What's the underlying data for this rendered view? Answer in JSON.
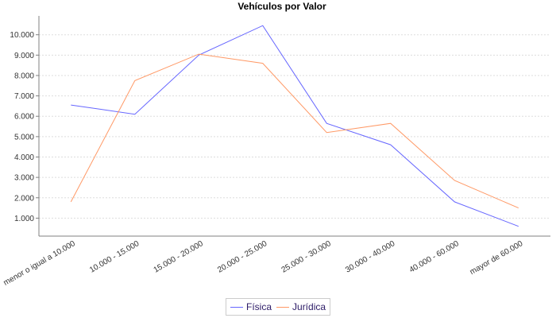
{
  "chart_data": {
    "type": "line",
    "title": "Vehículos por Valor",
    "xlabel": "",
    "ylabel": "",
    "categories": [
      "menor o igual a 10.000",
      "10.000 - 15.000",
      "15.000 - 20.000",
      "20.000 - 25.000",
      "25.000 - 30.000",
      "30.000 - 40.000",
      "40.000 - 60.000",
      "mayor de 60.000"
    ],
    "series": [
      {
        "name": "Física",
        "color": "#6666ff",
        "values": [
          6550,
          6100,
          9000,
          10450,
          5650,
          4600,
          1800,
          600
        ]
      },
      {
        "name": "Jurídica",
        "color": "#ff9966",
        "values": [
          1800,
          7750,
          9050,
          8600,
          5200,
          5650,
          2850,
          1500
        ]
      }
    ],
    "yticks": [
      1000,
      2000,
      3000,
      4000,
      5000,
      6000,
      7000,
      8000,
      9000,
      10000
    ],
    "ytick_labels": [
      "1.000",
      "2.000",
      "3.000",
      "4.000",
      "5.000",
      "6.000",
      "7.000",
      "8.000",
      "9.000",
      "10.000"
    ],
    "ylim": [
      0,
      10900
    ],
    "grid": true,
    "legend_position": "bottom"
  },
  "legend": {
    "items": [
      {
        "label": "Física",
        "color": "#6666ff"
      },
      {
        "label": "Jurídica",
        "color": "#ff9966"
      }
    ]
  }
}
